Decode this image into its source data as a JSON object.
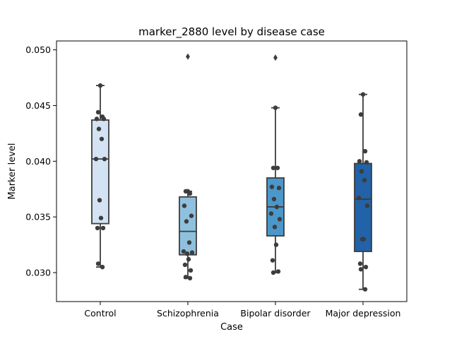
{
  "chart_data": {
    "type": "box",
    "title": "marker_2880 level by disease case",
    "xlabel": "Case",
    "ylabel": "Marker level",
    "ylim": [
      0.0274,
      0.0508
    ],
    "yticks": [
      "0.030",
      "0.035",
      "0.040",
      "0.045",
      "0.050"
    ],
    "ytick_values": [
      0.03,
      0.035,
      0.04,
      0.045,
      0.05
    ],
    "grid": false,
    "legend": "none",
    "categories": [
      "Control",
      "Schizophrenia",
      "Bipolar disorder",
      "Major depression"
    ],
    "box_colors": [
      "#d3e3f3",
      "#8fc1de",
      "#4b97c9",
      "#2262a8"
    ],
    "point_color": "#3d3d3d",
    "line_color": "#3d3d3d",
    "boxes": [
      {
        "category": "Control",
        "whisker_low": 0.0305,
        "q1": 0.0344,
        "median": 0.0402,
        "q3": 0.0437,
        "whisker_high": 0.0468,
        "outliers": []
      },
      {
        "category": "Schizophrenia",
        "whisker_low": 0.0295,
        "q1": 0.0316,
        "median": 0.0337,
        "q3": 0.0368,
        "whisker_high": 0.0373,
        "outliers": [
          0.0494
        ]
      },
      {
        "category": "Bipolar disorder",
        "whisker_low": 0.03,
        "q1": 0.0333,
        "median": 0.0359,
        "q3": 0.0385,
        "whisker_high": 0.0448,
        "outliers": [
          0.0493
        ]
      },
      {
        "category": "Major depression",
        "whisker_low": 0.0285,
        "q1": 0.0319,
        "median": 0.0366,
        "q3": 0.0398,
        "whisker_high": 0.046,
        "outliers": []
      }
    ],
    "points": [
      {
        "category": "Control",
        "values": [
          0.0468,
          0.0444,
          0.044,
          0.0438,
          0.0438,
          0.0429,
          0.042,
          0.0402,
          0.0402,
          0.0365,
          0.0349,
          0.034,
          0.034,
          0.0308,
          0.0305
        ]
      },
      {
        "category": "Schizophrenia",
        "values": [
          0.0373,
          0.0373,
          0.0371,
          0.036,
          0.0351,
          0.0346,
          0.0327,
          0.0319,
          0.0318,
          0.0317,
          0.0312,
          0.0307,
          0.0302,
          0.0296,
          0.0295
        ]
      },
      {
        "category": "Bipolar disorder",
        "values": [
          0.0448,
          0.0394,
          0.0394,
          0.0377,
          0.0376,
          0.0366,
          0.0359,
          0.0353,
          0.0348,
          0.0341,
          0.0325,
          0.0311,
          0.0301,
          0.03
        ]
      },
      {
        "category": "Major depression",
        "values": [
          0.046,
          0.0442,
          0.0409,
          0.04,
          0.0399,
          0.0391,
          0.0383,
          0.0367,
          0.036,
          0.033,
          0.033,
          0.0308,
          0.0305,
          0.0303,
          0.0285
        ]
      }
    ]
  }
}
